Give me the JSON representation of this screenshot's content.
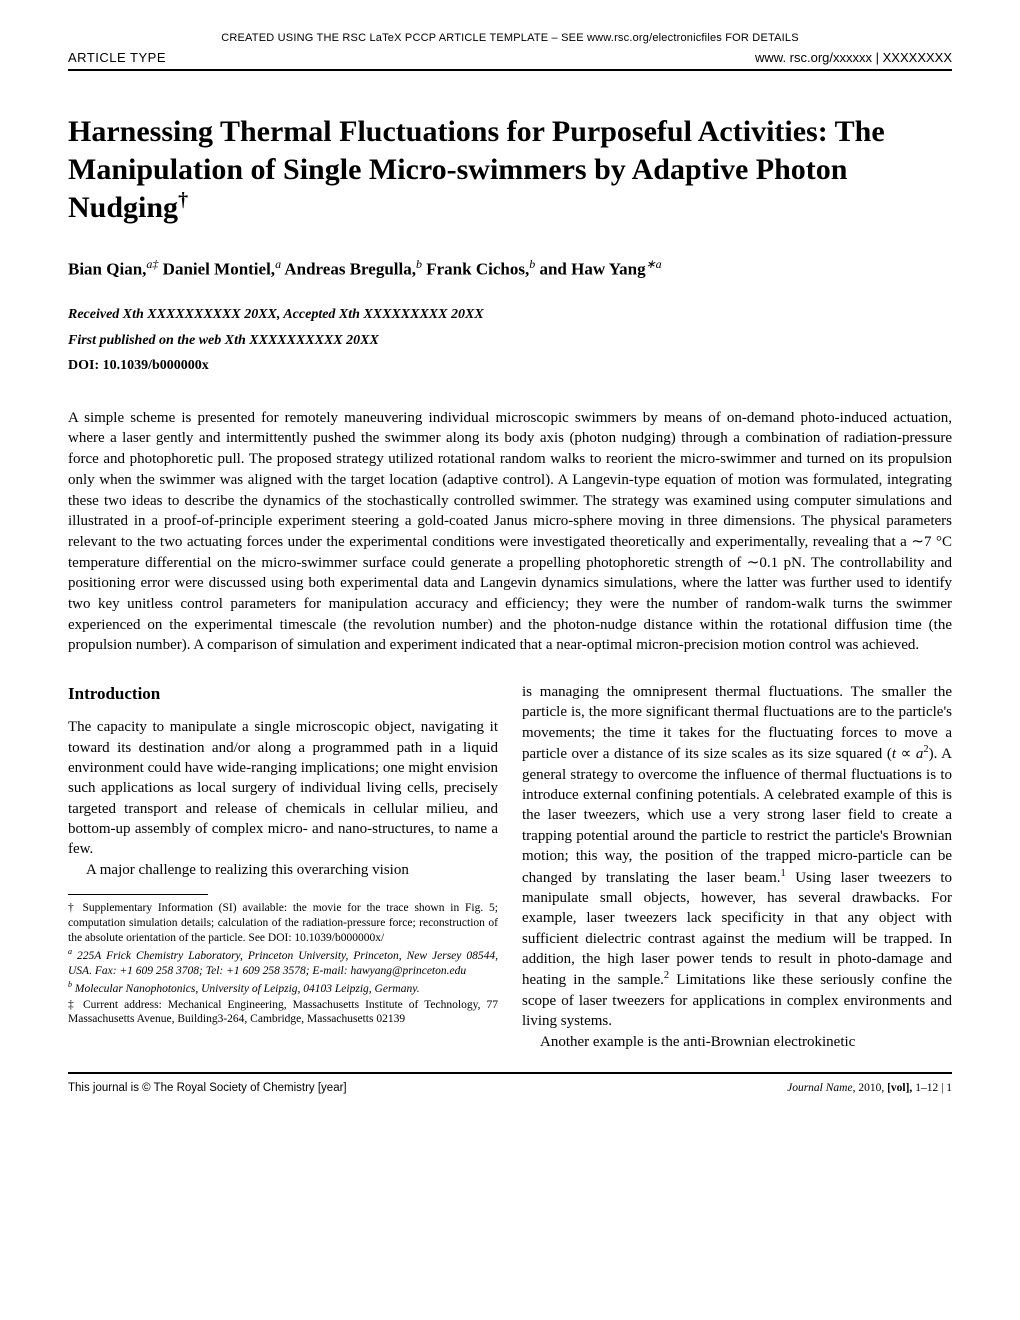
{
  "template_note": "CREATED USING THE RSC LaTeX PCCP ARTICLE TEMPLATE – SEE www.rsc.org/electronicfiles FOR DETAILS",
  "header": {
    "article_type": "ARTICLE TYPE",
    "journal_url": "www. rsc.org/xxxxxx  |  XXXXXXXX"
  },
  "title": "Harnessing Thermal Fluctuations for Purposeful Activities: The Manipulation of Single Micro-swimmers by Adaptive Photon Nudging",
  "title_dagger": "†",
  "authors_html": "Bian Qian,<span class=\"aff\">a‡</span> Daniel Montiel,<span class=\"aff\">a</span> Andreas Bregulla,<span class=\"aff\">b</span> Frank Cichos,<span class=\"aff\">b</span> and Haw Yang<span class=\"aff\">∗a</span>",
  "meta": {
    "received": "Received Xth XXXXXXXXXX 20XX, Accepted Xth XXXXXXXXX 20XX",
    "published": "First published on the web Xth XXXXXXXXXX 20XX",
    "doi": "DOI: 10.1039/b000000x"
  },
  "abstract": "A simple scheme is presented for remotely maneuvering individual microscopic swimmers by means of on-demand photo-induced actuation, where a laser gently and intermittently pushed the swimmer along its body axis (photon nudging) through a combination of radiation-pressure force and photophoretic pull. The proposed strategy utilized rotational random walks to reorient the micro-swimmer and turned on its propulsion only when the swimmer was aligned with the target location (adaptive control). A Langevin-type equation of motion was formulated, integrating these two ideas to describe the dynamics of the stochastically controlled swimmer. The strategy was examined using computer simulations and illustrated in a proof-of-principle experiment steering a gold-coated Janus micro-sphere moving in three dimensions. The physical parameters relevant to the two actuating forces under the experimental conditions were investigated theoretically and experimentally, revealing that a ∼7 °C temperature differential on the micro-swimmer surface could generate a propelling photophoretic strength of ∼0.1 pN. The controllability and positioning error were discussed using both experimental data and Langevin dynamics simulations, where the latter was further used to identify two key unitless control parameters for manipulation accuracy and efficiency; they were the number of random-walk turns the swimmer experienced on the experimental timescale (the revolution number) and the photon-nudge distance within the rotational diffusion time (the propulsion number). A comparison of simulation and experiment indicated that a near-optimal micron-precision motion control was achieved.",
  "intro": {
    "heading": "Introduction",
    "p1": "The capacity to manipulate a single microscopic object, navigating it toward its destination and/or along a programmed path in a liquid environment could have wide-ranging implications; one might envision such applications as local surgery of individual living cells, precisely targeted transport and release of chemicals in cellular milieu, and bottom-up assembly of complex micro- and nano-structures, to name a few.",
    "p2": "A major challenge to realizing this overarching vision",
    "p3_html": "is managing the omnipresent thermal fluctuations. The smaller the particle is, the more significant thermal fluctuations are to the particle's movements; the time it takes for the fluctuating forces to move a particle over a distance of its size scales as its size squared (<i>t</i> ∝ <i>a</i><span class=\"sup\">2</span>). A general strategy to overcome the influence of thermal fluctuations is to introduce external confining potentials. A celebrated example of this is the laser tweezers, which use a very strong laser field to create a trapping potential around the particle to restrict the particle's Brownian motion; this way, the position of the trapped micro-particle can be changed by translating the laser beam.<span class=\"sup\">1</span> Using laser tweezers to manipulate small objects, however, has several drawbacks. For example, laser tweezers lack specificity in that any object with sufficient dielectric contrast against the medium will be trapped. In addition, the high laser power tends to result in photo-damage and heating in the sample.<span class=\"sup\">2</span> Limitations like these seriously confine the scope of laser tweezers for applications in complex environments and living systems.",
    "p4": "Another example is the anti-Brownian electrokinetic"
  },
  "footnotes": {
    "si": "† Supplementary Information (SI) available: the movie for the trace shown in Fig. 5; computation simulation details; calculation of the radiation-pressure force; reconstruction of the absolute orientation of the particle. See DOI: 10.1039/b000000x/",
    "aff_a": "225A Frick Chemistry Laboratory, Princeton University, Princeton, New Jersey 08544, USA. Fax: +1 609 258 3708; Tel: +1 609 258 3578; E-mail: hawyang@princeton.edu",
    "aff_a_label": "a",
    "aff_b": "Molecular Nanophotonics, University of Leipzig, 04103 Leipzig, Germany.",
    "aff_b_label": "b",
    "current": "‡ Current address: Mechanical Engineering, Massachusetts Institute of Technology, 77 Massachusetts Avenue, Building3-264, Cambridge, Massachusetts 02139"
  },
  "footer": {
    "left": "This journal is © The Royal Society of Chemistry [year]",
    "journal": "Journal Name",
    "year": ", 2010, ",
    "vol": "[vol],",
    "pages": "1–12  | 1"
  }
}
